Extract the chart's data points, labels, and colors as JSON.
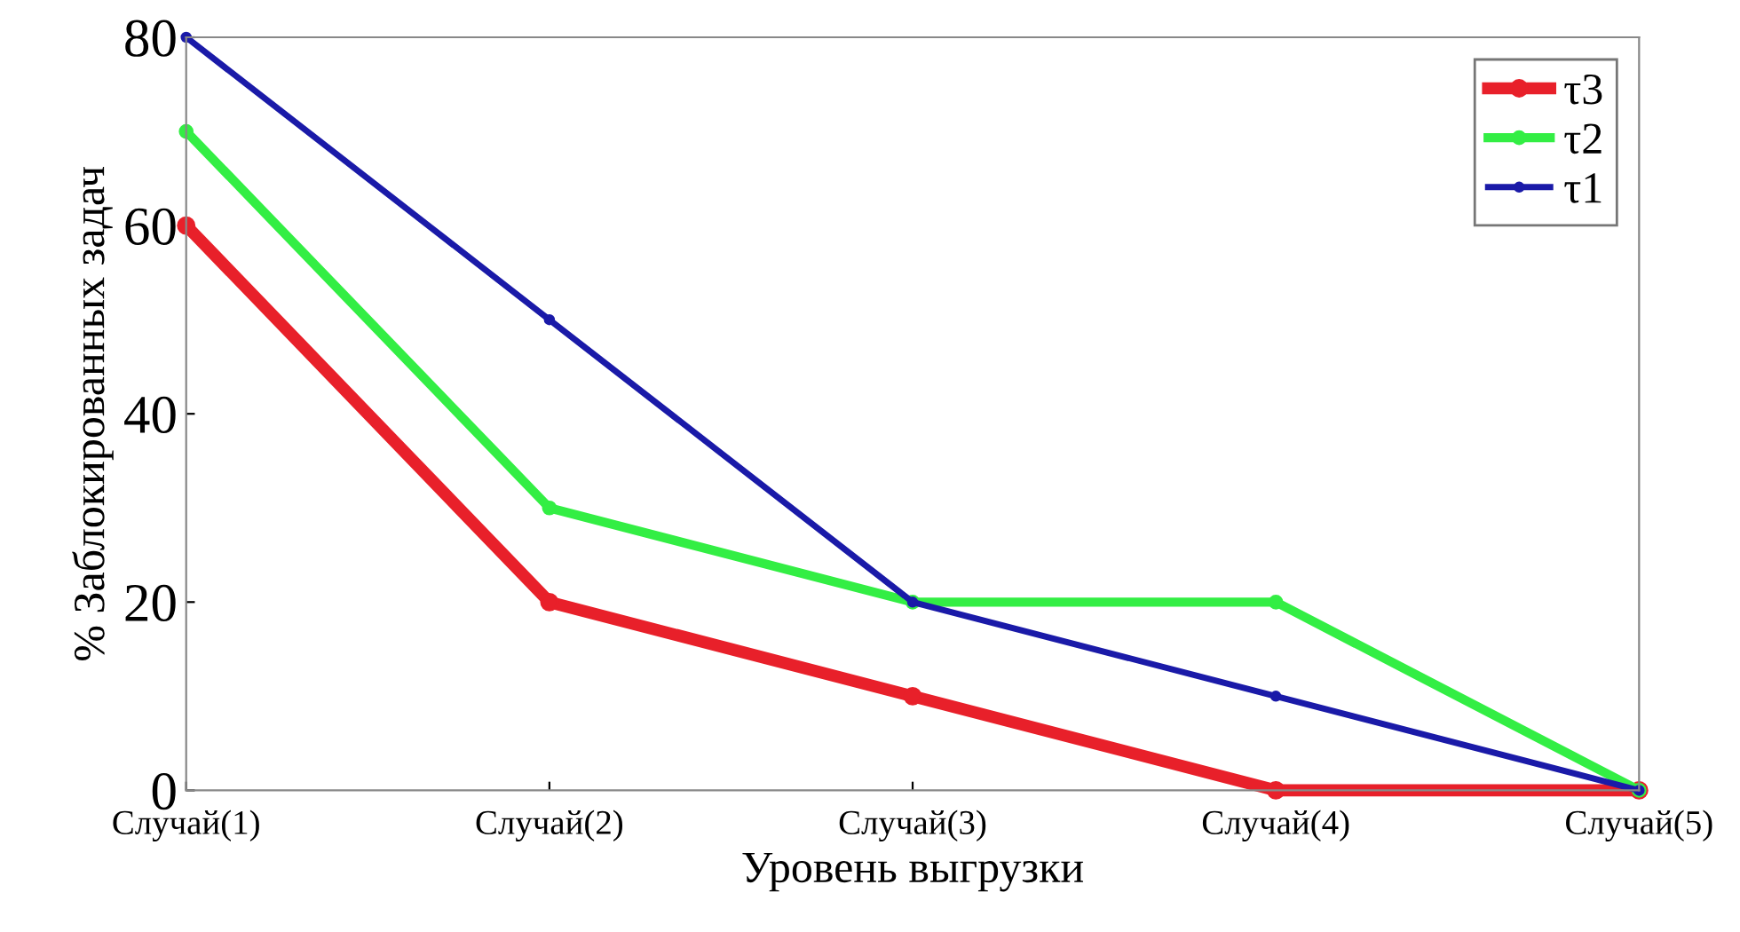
{
  "chart_data": {
    "type": "line",
    "xlabel": "Уровень выгрузки",
    "ylabel": "% Заблокированных задач",
    "categories": [
      "Случай(1)",
      "Случай(2)",
      "Случай(3)",
      "Случай(4)",
      "Случай(5)"
    ],
    "series": [
      {
        "name": "τ3",
        "color": "#e8202a",
        "values": [
          60,
          20,
          10,
          0,
          0
        ]
      },
      {
        "name": "τ2",
        "color": "#33ee44",
        "values": [
          70,
          30,
          20,
          20,
          0
        ]
      },
      {
        "name": "τ1",
        "color": "#1a1aa8",
        "values": [
          80,
          50,
          20,
          10,
          0
        ]
      }
    ],
    "ylim": [
      0,
      80
    ],
    "yticks": [
      0,
      20,
      40,
      60,
      80
    ],
    "grid": false,
    "legend": "top right",
    "marker": "circle",
    "line_style": "solid"
  }
}
